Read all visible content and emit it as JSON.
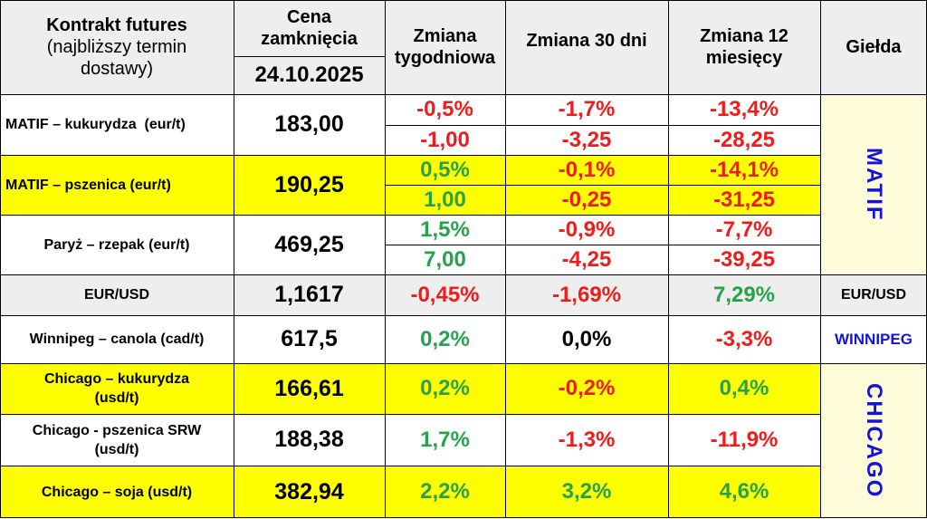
{
  "header": {
    "contract_title": "Kontrakt futures",
    "contract_subtitle": "(najbliższy termin dostawy)",
    "price_title": "Cena zamknięcia",
    "date": "24.10.2025",
    "weekly": "Zmiana tygodniowa",
    "d30": "Zmiana 30 dni",
    "m12": "Zmiana 12 miesięcy",
    "exchange": "Giełda"
  },
  "rows": [
    {
      "name": "MATIF – kukurydza  (eur/t)",
      "price": "183,00",
      "w_pct": "-0,5%",
      "w_abs": "-1,00",
      "d30_pct": "-1,7%",
      "d30_abs": "-3,25",
      "m12_pct": "-13,4%",
      "m12_abs": "-28,25"
    },
    {
      "name": "MATIF – pszenica (eur/t)",
      "price": "190,25",
      "w_pct": "0,5%",
      "w_abs": "1,00",
      "d30_pct": "-0,1%",
      "d30_abs": "-0,25",
      "m12_pct": "-14,1%",
      "m12_abs": "-31,25"
    },
    {
      "name": "Paryż – rzepak (eur/t)",
      "price": "469,25",
      "w_pct": "1,5%",
      "w_abs": "7,00",
      "d30_pct": "-0,9%",
      "d30_abs": "-4,25",
      "m12_pct": "-7,7%",
      "m12_abs": "-39,25"
    },
    {
      "name": "EUR/USD",
      "price": "1,1617",
      "weekly": "-0,45%",
      "d30": "-1,69%",
      "m12": "7,29%"
    },
    {
      "name": "Winnipeg – canola (cad/t)",
      "price": "617,5",
      "weekly": "0,2%",
      "d30": "0,0%",
      "m12": "-3,3%"
    },
    {
      "name": "Chicago – kukurydza (usd/t)",
      "price": "166,61",
      "weekly": "0,2%",
      "d30": "-0,2%",
      "m12": "0,4%"
    },
    {
      "name": "Chicago - pszenica SRW (usd/t)",
      "price": "188,38",
      "weekly": "1,7%",
      "d30": "-1,3%",
      "m12": "-11,9%"
    },
    {
      "name": "Chicago – soja (usd/t)",
      "price": "382,94",
      "weekly": "2,2%",
      "d30": "3,2%",
      "m12": "4,6%"
    }
  ],
  "exchanges": {
    "matif": "MATIF",
    "eurusd": "EUR/USD",
    "winnipeg": "WINNIPEG",
    "chicago": "CHICAGO"
  },
  "colors": {
    "header_bg": "#eeeeee",
    "highlight_yellow": "#ffff00",
    "pale_yellow": "#fdfbd8",
    "negative_red": "#ee1c1c",
    "positive_green": "#27a24a",
    "exchange_blue": "#1414d9"
  }
}
